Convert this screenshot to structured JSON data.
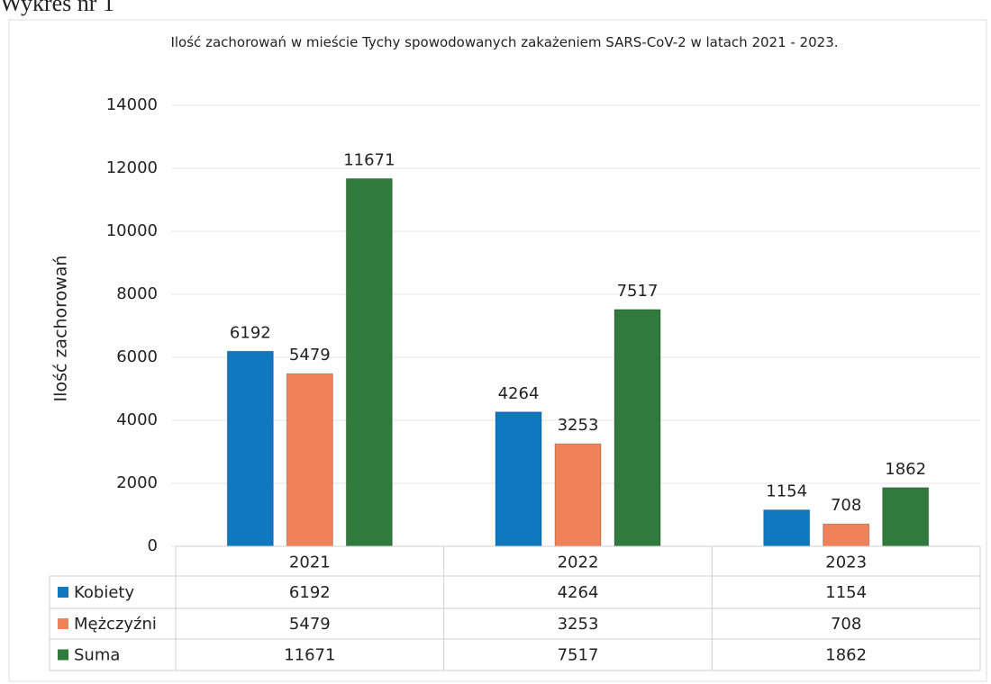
{
  "caption": "Wykres nr 1",
  "chart_data": {
    "type": "bar",
    "title": "Ilość zachorowań w mieście Tychy spowodowanych zakażeniem SARS-CoV-2 w latach 2021 - 2023.",
    "y_label": "Ilość zachorowań",
    "categories": [
      "2021",
      "2022",
      "2023"
    ],
    "series": [
      {
        "name": "Kobiety",
        "color": "#0f78bf",
        "values": [
          6192,
          4264,
          1154
        ]
      },
      {
        "name": "Mężczyźni",
        "color": "#f0825a",
        "values": [
          5479,
          3253,
          708
        ]
      },
      {
        "name": "Suma",
        "color": "#2f7a3c",
        "values": [
          11671,
          7517,
          1862
        ]
      }
    ],
    "ylim": [
      0,
      14000
    ],
    "yticks": [
      0,
      2000,
      4000,
      6000,
      8000,
      10000,
      12000,
      14000
    ],
    "grid": true,
    "data_table": true
  }
}
